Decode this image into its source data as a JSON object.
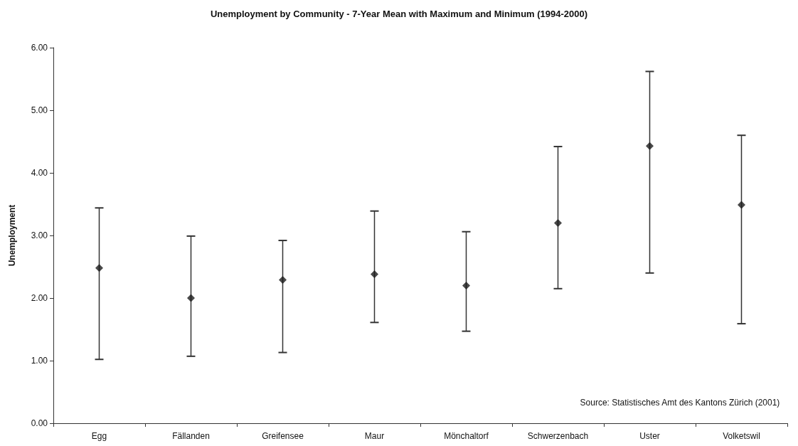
{
  "chart_data": {
    "type": "scatter",
    "title": "Unemployment by Community - 7-Year Mean with Maximum and Minimum (1994-2000)",
    "ylabel": "Unemployment",
    "annotations": [
      "Source: Statistisches Amt des Kantons Zürich (2001)"
    ],
    "categories": [
      "Egg",
      "Fällanden",
      "Greifensee",
      "Maur",
      "Mönchaltorf",
      "Schwerzenbach",
      "Uster",
      "Volketswil"
    ],
    "values": [
      2.48,
      2.0,
      2.29,
      2.38,
      2.2,
      3.2,
      4.43,
      3.49
    ],
    "errors": [
      [
        1.02,
        3.44
      ],
      [
        1.07,
        2.99
      ],
      [
        1.13,
        2.92
      ],
      [
        1.61,
        3.39
      ],
      [
        1.47,
        3.06
      ],
      [
        2.15,
        4.42
      ],
      [
        2.4,
        5.62
      ],
      [
        1.59,
        4.6
      ]
    ],
    "color": "#1a1a1a",
    "ylim": [
      0,
      6
    ],
    "yticks": [
      {
        "value": 0,
        "label": "0.00"
      },
      {
        "value": 1,
        "label": "1.00"
      },
      {
        "value": 2,
        "label": "2.00"
      },
      {
        "value": 3,
        "label": "3.00"
      },
      {
        "value": 4,
        "label": "4.00"
      },
      {
        "value": 5,
        "label": "5.00"
      },
      {
        "value": 6,
        "label": "6.00"
      }
    ],
    "marker": "diamond",
    "grid": false
  }
}
